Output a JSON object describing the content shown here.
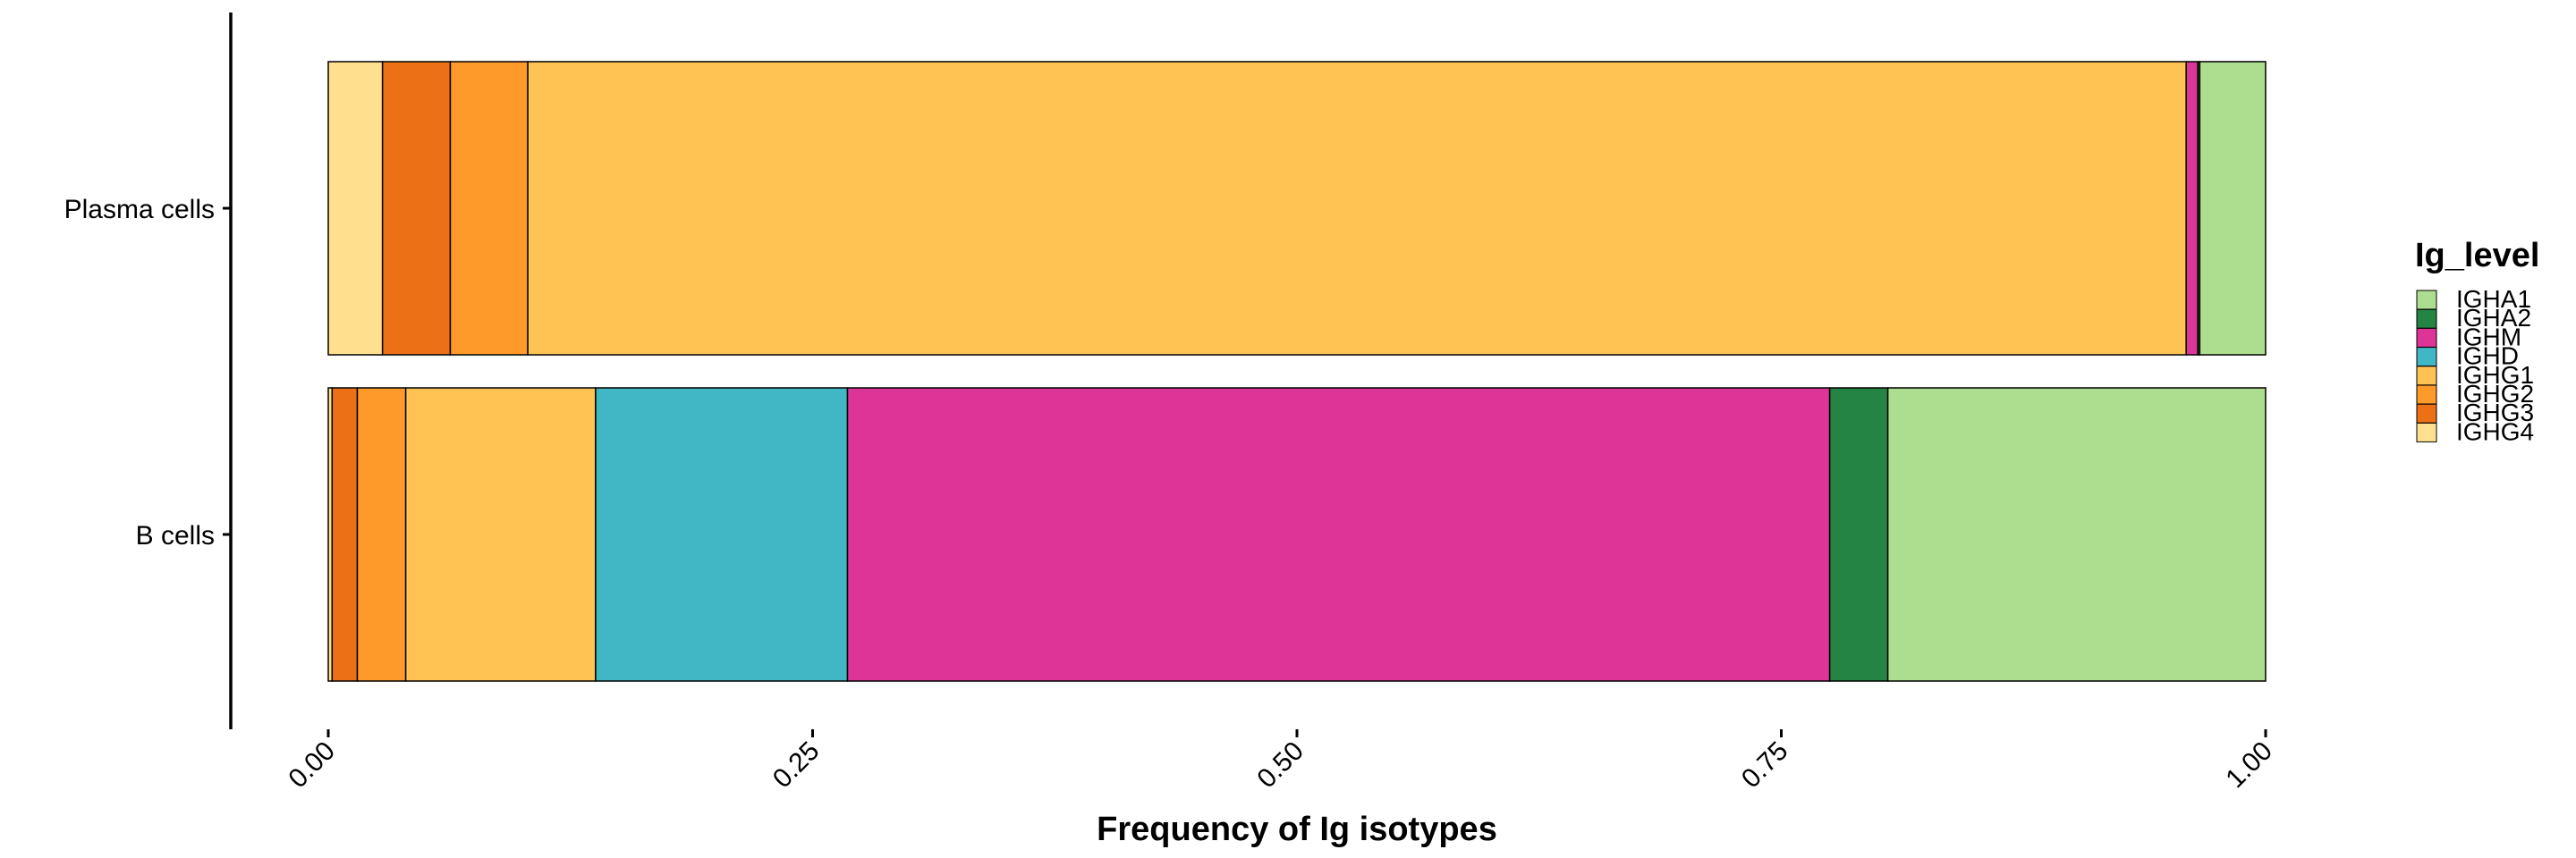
{
  "chart_data": {
    "type": "bar",
    "orientation": "horizontal",
    "stacked": true,
    "xlabel": "Frequency of Ig isotypes",
    "ylabel": "",
    "xlim": [
      0,
      1
    ],
    "xticks": [
      0,
      0.25,
      0.5,
      0.75,
      1
    ],
    "xtick_labels": [
      "0.00",
      "0.25",
      "0.50",
      "0.75",
      "1.00"
    ],
    "categories": [
      "Plasma cells",
      "B cells"
    ],
    "grid": false,
    "legend": {
      "title": "Ig_level",
      "position": "right"
    },
    "series": [
      {
        "name": "IGHG4",
        "color": "#FEE08F",
        "values": [
          0.028,
          0.002
        ]
      },
      {
        "name": "IGHG3",
        "color": "#EC7116",
        "values": [
          0.035,
          0.013
        ]
      },
      {
        "name": "IGHG2",
        "color": "#FD9A2A",
        "values": [
          0.04,
          0.025
        ]
      },
      {
        "name": "IGHG1",
        "color": "#FEC353",
        "values": [
          0.856,
          0.098
        ]
      },
      {
        "name": "IGHD",
        "color": "#41B6C4",
        "values": [
          0.0,
          0.13
        ]
      },
      {
        "name": "IGHM",
        "color": "#DD3497",
        "values": [
          0.006,
          0.507
        ]
      },
      {
        "name": "IGHA2",
        "color": "#238443",
        "values": [
          0.001,
          0.03
        ]
      },
      {
        "name": "IGHA1",
        "color": "#ADDD8E",
        "values": [
          0.034,
          0.195
        ]
      }
    ],
    "legend_order": [
      "IGHA1",
      "IGHA2",
      "IGHM",
      "IGHD",
      "IGHG1",
      "IGHG2",
      "IGHG3",
      "IGHG4"
    ]
  }
}
